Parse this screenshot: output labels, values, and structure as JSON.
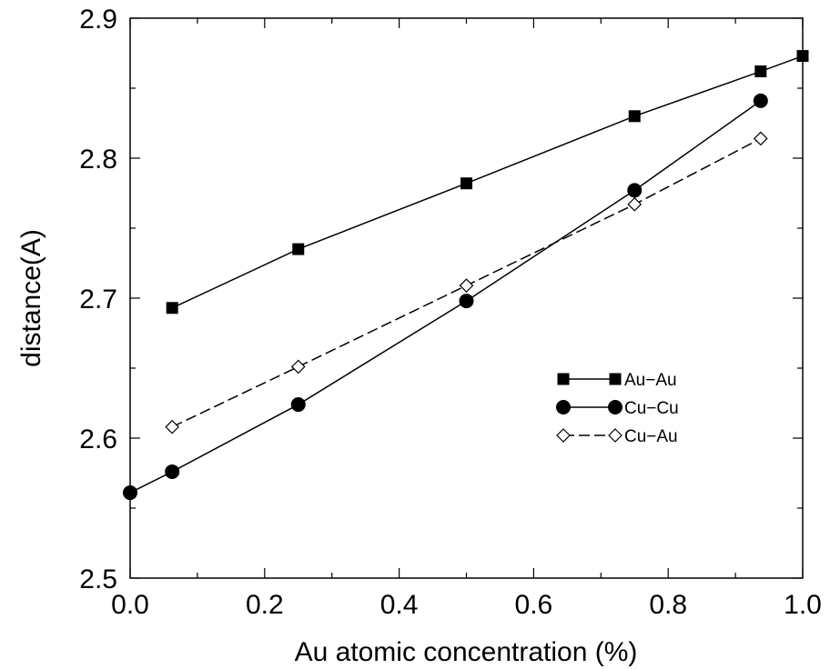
{
  "chart_data": {
    "type": "line",
    "title": "",
    "xlabel": "Au atomic concentration (%)",
    "ylabel": "distance(A)",
    "xlim": [
      0.0,
      1.0
    ],
    "ylim": [
      2.5,
      2.9
    ],
    "x_ticks": [
      "0.0",
      "0.2",
      "0.4",
      "0.6",
      "0.8",
      "1.0"
    ],
    "y_ticks": [
      "2.5",
      "2.6",
      "2.7",
      "2.8",
      "2.9"
    ],
    "grid": false,
    "legend_position": "center-right",
    "series": [
      {
        "name": "Au−Au",
        "marker": "filled-square",
        "line_style": "solid",
        "x": [
          0.0625,
          0.25,
          0.5,
          0.75,
          0.9375,
          1.0
        ],
        "y": [
          2.693,
          2.735,
          2.782,
          2.83,
          2.862,
          2.873
        ]
      },
      {
        "name": "Cu−Cu",
        "marker": "filled-circle",
        "line_style": "solid",
        "x": [
          0.0,
          0.0625,
          0.25,
          0.5,
          0.75,
          0.9375
        ],
        "y": [
          2.561,
          2.576,
          2.624,
          2.698,
          2.777,
          2.841
        ]
      },
      {
        "name": "Cu−Au",
        "marker": "open-diamond",
        "line_style": "dashed",
        "x": [
          0.0625,
          0.25,
          0.5,
          0.75,
          0.9375
        ],
        "y": [
          2.608,
          2.651,
          2.709,
          2.767,
          2.814
        ]
      }
    ]
  }
}
